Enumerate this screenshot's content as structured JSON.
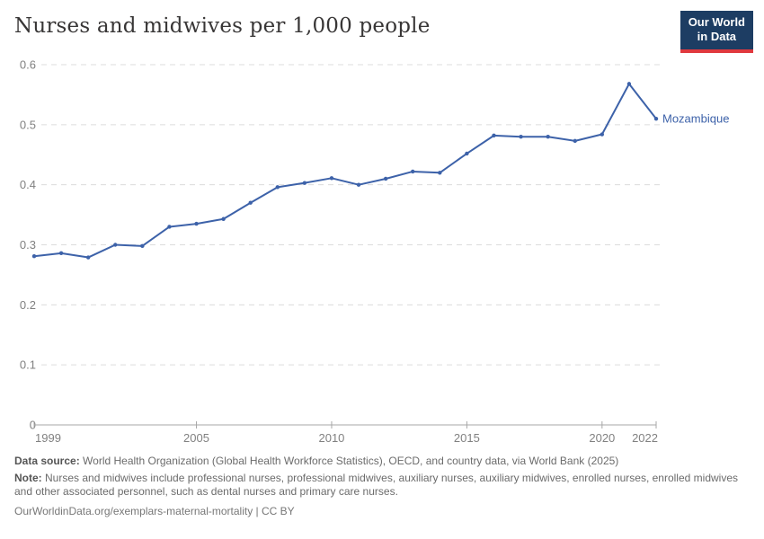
{
  "header": {
    "title": "Nurses and midwives per 1,000 people",
    "logo": {
      "line1": "Our World",
      "line2": "in Data"
    }
  },
  "colors": {
    "accent_blue": "#3d62a9",
    "logo_bg": "#1d3d63",
    "logo_red": "#e0393e",
    "gridline": "#dcdcdc",
    "axis": "#a7a7a7",
    "tick_text": "#818181"
  },
  "chart_data": {
    "type": "line",
    "title": "Nurses and midwives per 1,000 people",
    "xlabel": "",
    "ylabel": "",
    "xlim": [
      1999,
      2022
    ],
    "ylim": [
      0,
      0.6
    ],
    "grid": "horizontal-dashed",
    "legend_position": "end-of-line-label",
    "yticks": [
      0,
      0.1,
      0.2,
      0.3,
      0.4,
      0.5,
      0.6
    ],
    "ytick_labels": [
      "0",
      "0.1",
      "0.2",
      "0.3",
      "0.4",
      "0.5",
      "0.6"
    ],
    "xticks": [
      1999,
      2005,
      2010,
      2015,
      2020,
      2022
    ],
    "series": [
      {
        "name": "Mozambique",
        "color": "#3d62a9",
        "x": [
          1999,
          2000,
          2001,
          2002,
          2003,
          2004,
          2005,
          2006,
          2007,
          2008,
          2009,
          2010,
          2011,
          2012,
          2013,
          2014,
          2015,
          2016,
          2017,
          2018,
          2019,
          2020,
          2021,
          2022
        ],
        "values": [
          0.281,
          0.286,
          0.279,
          0.3,
          0.298,
          0.33,
          0.335,
          0.343,
          0.37,
          0.396,
          0.403,
          0.411,
          0.4,
          0.41,
          0.422,
          0.42,
          0.452,
          0.482,
          0.48,
          0.48,
          0.473,
          0.484,
          0.568,
          0.51
        ]
      }
    ]
  },
  "footer": {
    "data_source_label": "Data source:",
    "data_source_text": " World Health Organization (Global Health Workforce Statistics), OECD, and country data, via World Bank (2025)",
    "note_label": "Note:",
    "note_text": " Nurses and midwives include professional nurses, professional midwives, auxiliary nurses, auxiliary midwives, enrolled nurses, enrolled midwives and other associated personnel, such as dental nurses and primary care nurses.",
    "url_line": "OurWorldinData.org/exemplars-maternal-mortality | CC BY"
  }
}
